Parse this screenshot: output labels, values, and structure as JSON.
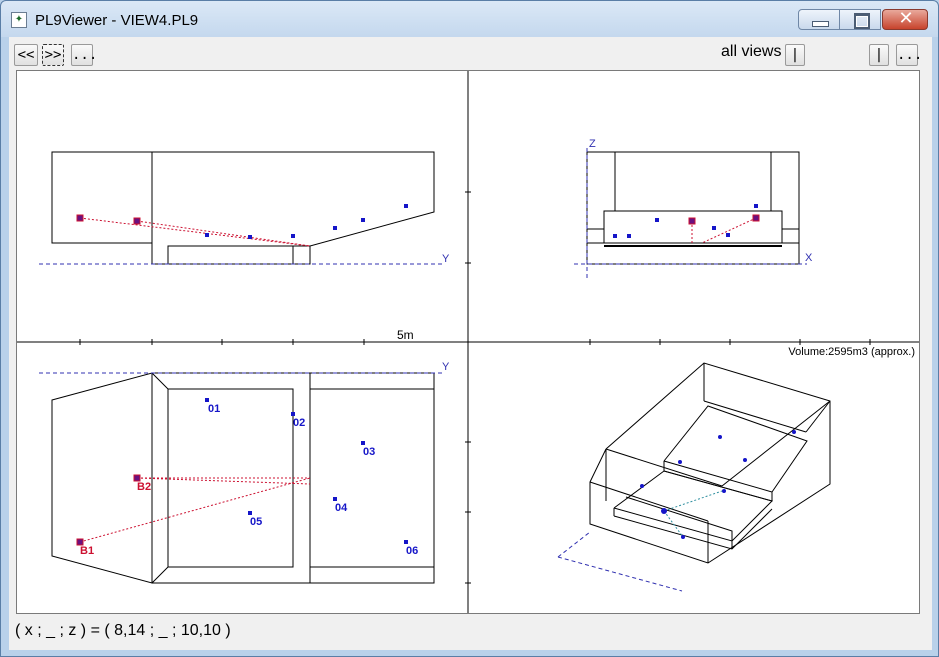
{
  "window": {
    "title": "PL9Viewer - VIEW4.PL9",
    "app_icon": "pl9-app-icon",
    "close_glyph": "✕"
  },
  "toolbar": {
    "prev_label": "<<",
    "next_label": ">>",
    "more_label": "...",
    "views_label": "all views",
    "slider_left": "|",
    "slider_right": "|",
    "views_more_label": "..."
  },
  "views": {
    "top_left": {
      "axis_y": "Y",
      "scale": "5m"
    },
    "top_right": {
      "axis_z": "Z",
      "axis_x": "X"
    },
    "bottom_left": {
      "axis_y": "Y",
      "points": [
        "01",
        "02",
        "03",
        "04",
        "05",
        "06"
      ],
      "receivers": [
        "B1",
        "B2"
      ]
    },
    "bottom_right": {
      "volume": "Volume:2595m3 (approx.)"
    }
  },
  "status": {
    "coords": "( x ; _ ; z ) = ( 8,14 ; _ ; 10,10 )"
  },
  "colors": {
    "point": "#1515c8",
    "receiver": "#cc1030",
    "axis": "#3030b0",
    "line": "#000000"
  }
}
